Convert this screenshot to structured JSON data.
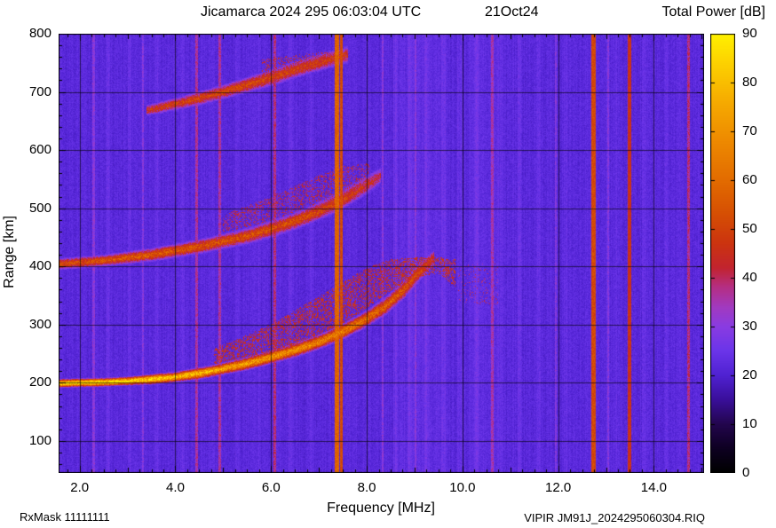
{
  "footer": {
    "rxmask": "RxMask 11111111",
    "source_file": "VIPIR JM91J_2024295060304.RIQ"
  },
  "chart_data": {
    "type": "heatmap",
    "title": "Jicamarca 2024 295 06:03:04 UTC",
    "date_label": "21Oct24",
    "colorbar_title": "Total Power [dB]",
    "xlabel": "Frequency [MHz]",
    "ylabel": "Range [km]",
    "xlim": [
      1.56,
      15.05
    ],
    "ylim": [
      45,
      800
    ],
    "x_minor_step": 0.25,
    "y_minor_step": 20,
    "xticks": [
      {
        "v": 2,
        "label": "2.0"
      },
      {
        "v": 4,
        "label": "4.0"
      },
      {
        "v": 6,
        "label": "6.0"
      },
      {
        "v": 8,
        "label": "8.0"
      },
      {
        "v": 10,
        "label": "10.0"
      },
      {
        "v": 12,
        "label": "12.0"
      },
      {
        "v": 14,
        "label": "14.0"
      }
    ],
    "yticks": [
      {
        "v": 100,
        "label": "100"
      },
      {
        "v": 200,
        "label": "200"
      },
      {
        "v": 300,
        "label": "300"
      },
      {
        "v": 400,
        "label": "400"
      },
      {
        "v": 500,
        "label": "500"
      },
      {
        "v": 600,
        "label": "600"
      },
      {
        "v": 700,
        "label": "700"
      },
      {
        "v": 800,
        "label": "800"
      }
    ],
    "colorbar": {
      "range": [
        0,
        90
      ],
      "ticks": [
        {
          "v": 0,
          "label": "0"
        },
        {
          "v": 10,
          "label": "10"
        },
        {
          "v": 20,
          "label": "20"
        },
        {
          "v": 30,
          "label": "30"
        },
        {
          "v": 40,
          "label": "40"
        },
        {
          "v": 50,
          "label": "50"
        },
        {
          "v": 60,
          "label": "60"
        },
        {
          "v": 70,
          "label": "70"
        },
        {
          "v": 80,
          "label": "80"
        },
        {
          "v": 90,
          "label": "90"
        }
      ]
    },
    "background_db": 22,
    "palette": [
      [
        0,
        "#000000"
      ],
      [
        5,
        "#0e0022"
      ],
      [
        10,
        "#23064e"
      ],
      [
        15,
        "#3a0f9a"
      ],
      [
        20,
        "#5022d2"
      ],
      [
        25,
        "#6b35ea"
      ],
      [
        30,
        "#8a3ce2"
      ],
      [
        34,
        "#a23ac0"
      ],
      [
        38,
        "#b52f85"
      ],
      [
        42,
        "#c22430"
      ],
      [
        47,
        "#cc3410"
      ],
      [
        53,
        "#d64f04"
      ],
      [
        60,
        "#e36c00"
      ],
      [
        68,
        "#ee8a00"
      ],
      [
        76,
        "#f6ab00"
      ],
      [
        84,
        "#fdd200"
      ],
      [
        90,
        "#fff200"
      ]
    ],
    "rfi_lines": [
      {
        "f": 7.38,
        "w": 0.045,
        "db": 58
      },
      {
        "f": 7.47,
        "w": 0.035,
        "db": 52
      },
      {
        "f": 12.74,
        "w": 0.05,
        "db": 52
      },
      {
        "f": 13.49,
        "w": 0.04,
        "db": 46
      },
      {
        "f": 6.08,
        "w": 0.03,
        "db": 38
      },
      {
        "f": 4.45,
        "w": 0.025,
        "db": 36
      },
      {
        "f": 4.93,
        "w": 0.025,
        "db": 36
      },
      {
        "f": 10.63,
        "w": 0.03,
        "db": 35
      },
      {
        "f": 14.72,
        "w": 0.025,
        "db": 38
      },
      {
        "f": 2.29,
        "w": 0.025,
        "db": 30
      },
      {
        "f": 3.33,
        "w": 0.02,
        "db": 29
      },
      {
        "f": 9.02,
        "w": 0.02,
        "db": 30
      },
      {
        "f": 8.33,
        "w": 0.02,
        "db": 30
      },
      {
        "f": 11.95,
        "w": 0.02,
        "db": 29
      },
      {
        "f": 13.05,
        "w": 0.02,
        "db": 29
      }
    ],
    "striations": [
      {
        "f": 2.6,
        "w": 0.04,
        "db": 2
      },
      {
        "f": 3.05,
        "w": 0.04,
        "db": 2
      },
      {
        "f": 3.6,
        "w": 0.04,
        "db": 2
      },
      {
        "f": 4.15,
        "w": 0.04,
        "db": 2
      },
      {
        "f": 5.3,
        "w": 0.04,
        "db": 2
      },
      {
        "f": 5.75,
        "w": 0.04,
        "db": 2
      },
      {
        "f": 6.4,
        "w": 0.04,
        "db": 2
      },
      {
        "f": 6.85,
        "w": 0.04,
        "db": 2
      },
      {
        "f": 8.6,
        "w": 0.05,
        "db": 2.5
      },
      {
        "f": 8.9,
        "w": 0.05,
        "db": 2.5
      },
      {
        "f": 9.25,
        "w": 0.05,
        "db": 2.5
      },
      {
        "f": 9.6,
        "w": 0.05,
        "db": 2.5
      },
      {
        "f": 9.95,
        "w": 0.05,
        "db": 2
      },
      {
        "f": 10.3,
        "w": 0.05,
        "db": 2.5
      },
      {
        "f": 10.8,
        "w": 0.05,
        "db": 2
      },
      {
        "f": 11.2,
        "w": 0.05,
        "db": 2
      },
      {
        "f": 11.6,
        "w": 0.04,
        "db": 2
      },
      {
        "f": 12.15,
        "w": 0.04,
        "db": 2
      },
      {
        "f": 13.2,
        "w": 0.04,
        "db": 1.5
      },
      {
        "f": 13.8,
        "w": 0.04,
        "db": 1.5
      },
      {
        "f": 14.25,
        "w": 0.04,
        "db": 2
      },
      {
        "f": 14.55,
        "w": 0.03,
        "db": 1.5
      },
      {
        "f": 9.1,
        "w": 0.5,
        "db": 1.2
      },
      {
        "f": 10.45,
        "w": 0.3,
        "db": 1
      }
    ],
    "traces": [
      {
        "name": "F-layer-first-hop",
        "points": [
          [
            1.56,
            199,
            84,
            5
          ],
          [
            2.0,
            200,
            86,
            5
          ],
          [
            2.5,
            201,
            86,
            5
          ],
          [
            3.0,
            203,
            85,
            5
          ],
          [
            3.5,
            206,
            83,
            6
          ],
          [
            4.0,
            210,
            80,
            6
          ],
          [
            4.5,
            216,
            77,
            7
          ],
          [
            5.0,
            224,
            74,
            7
          ],
          [
            5.5,
            233,
            72,
            8
          ],
          [
            6.0,
            244,
            70,
            8
          ],
          [
            6.5,
            256,
            68,
            9
          ],
          [
            7.0,
            270,
            66,
            9
          ],
          [
            7.5,
            288,
            64,
            10
          ],
          [
            8.0,
            310,
            60,
            11
          ],
          [
            8.4,
            332,
            57,
            12
          ],
          [
            8.8,
            362,
            54,
            13
          ],
          [
            9.1,
            390,
            50,
            13
          ],
          [
            9.4,
            415,
            45,
            12
          ]
        ]
      },
      {
        "name": "second-hop",
        "points": [
          [
            1.56,
            404,
            52,
            8
          ],
          [
            2.5,
            410,
            54,
            8
          ],
          [
            3.5,
            420,
            55,
            9
          ],
          [
            4.5,
            434,
            54,
            10
          ],
          [
            5.5,
            452,
            53,
            11
          ],
          [
            6.0,
            464,
            52,
            12
          ],
          [
            6.5,
            478,
            52,
            12
          ],
          [
            7.0,
            495,
            51,
            13
          ],
          [
            7.5,
            515,
            49,
            14
          ],
          [
            8.0,
            540,
            45,
            14
          ],
          [
            8.3,
            556,
            40,
            13
          ]
        ]
      },
      {
        "name": "third-hop",
        "points": [
          [
            3.4,
            668,
            46,
            8
          ],
          [
            4.0,
            679,
            49,
            9
          ],
          [
            4.5,
            689,
            50,
            10
          ],
          [
            5.0,
            700,
            51,
            10
          ],
          [
            5.5,
            712,
            51,
            11
          ],
          [
            6.0,
            724,
            50,
            12
          ],
          [
            6.5,
            738,
            49,
            12
          ],
          [
            7.0,
            750,
            48,
            12
          ],
          [
            7.6,
            764,
            46,
            12
          ]
        ]
      }
    ],
    "spread_regions": [
      {
        "name": "spread-F-first-hop",
        "points": [
          [
            4.8,
            232,
            258
          ],
          [
            6.0,
            252,
            300
          ],
          [
            7.0,
            282,
            348
          ],
          [
            7.5,
            302,
            372
          ],
          [
            8.0,
            328,
            398
          ],
          [
            8.5,
            358,
            412
          ],
          [
            9.0,
            382,
            415
          ],
          [
            9.5,
            388,
            416
          ],
          [
            9.85,
            365,
            412
          ]
        ],
        "db": 45,
        "density": 0.4
      },
      {
        "name": "spread-second-hop",
        "points": [
          [
            5.0,
            458,
            488
          ],
          [
            6.0,
            478,
            520
          ],
          [
            7.0,
            508,
            556
          ],
          [
            7.5,
            528,
            572
          ],
          [
            8.05,
            552,
            578
          ]
        ],
        "db": 42,
        "density": 0.28
      },
      {
        "name": "faint-patch-10MHz",
        "points": [
          [
            9.9,
            335,
            405
          ],
          [
            10.75,
            335,
            405
          ]
        ],
        "db": 38,
        "density": 0.1
      },
      {
        "name": "spread-third-hop",
        "points": [
          [
            5.8,
            720,
            755
          ],
          [
            6.8,
            745,
            767
          ],
          [
            7.6,
            760,
            768
          ]
        ],
        "db": 43,
        "density": 0.25
      }
    ]
  }
}
